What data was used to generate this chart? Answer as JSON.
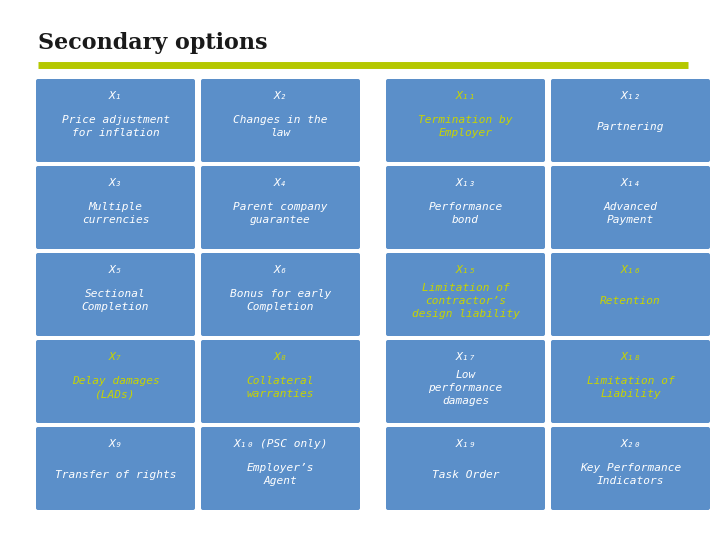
{
  "title": "Secondary options",
  "title_fontsize": 16,
  "background_color": "#ffffff",
  "box_color": "#5b8fc9",
  "line_color": "#b5c800",
  "white_text": "#ffffff",
  "yellow_text": "#c8d400",
  "title_color": "#1a1a1a",
  "cells": [
    {
      "col": 0,
      "row": 0,
      "label": "X₁",
      "text": "Price adjustment\nfor inflation",
      "highlight": false
    },
    {
      "col": 1,
      "row": 0,
      "label": "X₂",
      "text": "Changes in the\nlaw",
      "highlight": false
    },
    {
      "col": 2,
      "row": 0,
      "label": "X₁₁",
      "text": "Termination by\nEmployer",
      "highlight": true
    },
    {
      "col": 3,
      "row": 0,
      "label": "X₁₂",
      "text": "Partnering",
      "highlight": false
    },
    {
      "col": 0,
      "row": 1,
      "label": "X₃",
      "text": "Multiple\ncurrencies",
      "highlight": false
    },
    {
      "col": 1,
      "row": 1,
      "label": "X₄",
      "text": "Parent company\nguarantee",
      "highlight": false
    },
    {
      "col": 2,
      "row": 1,
      "label": "X₁₃",
      "text": "Performance\nbond",
      "highlight": false
    },
    {
      "col": 3,
      "row": 1,
      "label": "X₁₄",
      "text": "Advanced\nPayment",
      "highlight": false
    },
    {
      "col": 0,
      "row": 2,
      "label": "X₅",
      "text": "Sectional\nCompletion",
      "highlight": false
    },
    {
      "col": 1,
      "row": 2,
      "label": "X₆",
      "text": "Bonus for early\nCompletion",
      "highlight": false
    },
    {
      "col": 2,
      "row": 2,
      "label": "X₁₅",
      "text": "Limitation of\ncontractor’s\ndesign liability",
      "highlight": true
    },
    {
      "col": 3,
      "row": 2,
      "label": "X₁₆",
      "text": "Retention",
      "highlight": true
    },
    {
      "col": 0,
      "row": 3,
      "label": "X₇",
      "text": "Delay damages\n(LADs)",
      "highlight": true
    },
    {
      "col": 1,
      "row": 3,
      "label": "X₈",
      "text": "Collateral\nwarranties",
      "highlight": true
    },
    {
      "col": 2,
      "row": 3,
      "label": "X₁₇",
      "text": "Low\nperformance\ndamages",
      "highlight": false
    },
    {
      "col": 3,
      "row": 3,
      "label": "X₁₈",
      "text": "Limitation of\nLiability",
      "highlight": true
    },
    {
      "col": 0,
      "row": 4,
      "label": "X₉",
      "text": "Transfer of rights",
      "highlight": false
    },
    {
      "col": 1,
      "row": 4,
      "label": "X₁₀ (PSC only)",
      "text": "Employer’s\nAgent",
      "highlight": false
    },
    {
      "col": 2,
      "row": 4,
      "label": "X₁₉",
      "text": "Task Order",
      "highlight": false
    },
    {
      "col": 3,
      "row": 4,
      "label": "X₂₀",
      "text": "Key Performance\nIndicators",
      "highlight": false
    }
  ]
}
